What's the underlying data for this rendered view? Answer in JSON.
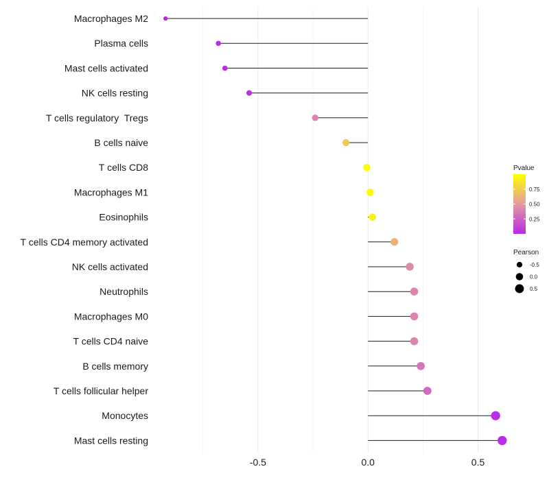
{
  "chart_data": {
    "type": "lollipop",
    "title": "",
    "xlabel": "",
    "ylabel": "",
    "xlim": [
      -0.98,
      0.62
    ],
    "xticks": [
      -0.5,
      0.0,
      0.5
    ],
    "xtick_labels": [
      "-0.5",
      "0.0",
      "0.5"
    ],
    "grid": true,
    "categories": [
      "Macrophages M2",
      "Plasma cells",
      "Mast cells activated",
      "NK cells resting",
      "T cells regulatory  Tregs",
      "B cells naive",
      "T cells CD8",
      "Macrophages M1",
      "Eosinophils",
      "T cells CD4 memory activated",
      "NK cells activated",
      "Neutrophils",
      "Macrophages M0",
      "T cells CD4 naive",
      "B cells memory",
      "T cells follicular helper",
      "Monocytes",
      "Mast cells resting"
    ],
    "pearson": [
      -0.92,
      -0.68,
      -0.65,
      -0.54,
      -0.24,
      -0.1,
      -0.005,
      0.01,
      0.02,
      0.12,
      0.19,
      0.21,
      0.21,
      0.21,
      0.24,
      0.27,
      0.58,
      0.61
    ],
    "pvalue": [
      0.001,
      0.002,
      0.003,
      0.02,
      0.4,
      0.72,
      0.99,
      0.97,
      0.95,
      0.63,
      0.43,
      0.4,
      0.4,
      0.4,
      0.34,
      0.28,
      0.012,
      0.008
    ],
    "colorbar": {
      "title": "Pvalue",
      "tick_values": [
        0.25,
        0.5,
        0.75
      ],
      "tick_labels": [
        "0.25",
        "0.50",
        "0.75"
      ],
      "range": [
        0,
        1
      ],
      "color_low": "#b72be6",
      "color_mid": "#e49aa0",
      "color_high": "#ffff00"
    },
    "size_legend": {
      "title": "Pearson",
      "values": [
        -0.5,
        0.0,
        0.5
      ],
      "labels": [
        "-0.5",
        "0.0",
        "0.5"
      ]
    }
  }
}
